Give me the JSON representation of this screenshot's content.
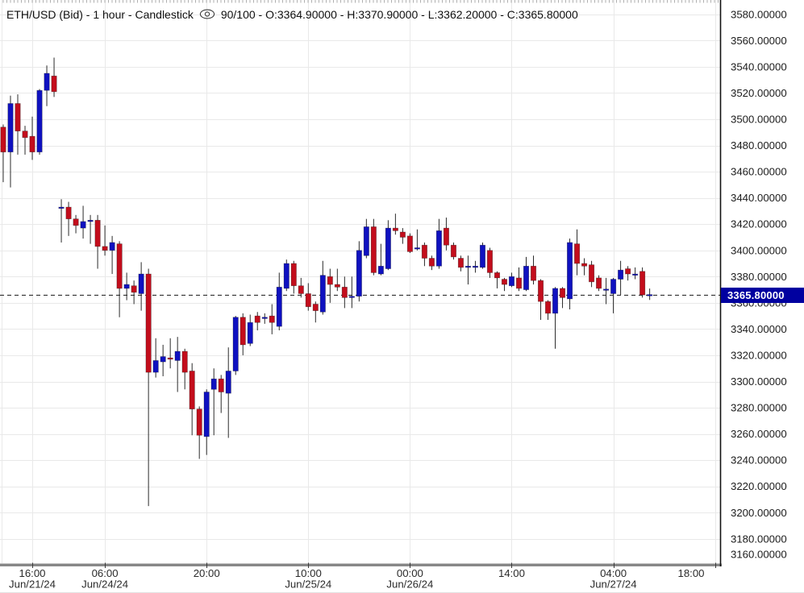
{
  "title": {
    "left": "ETH/USD (Bid) - 1 hour - Candlestick",
    "right": "90/100 - O:3364.90000 - H:3370.90000 - L:3362.20000 - C:3365.80000"
  },
  "chart_data": {
    "type": "candlestick",
    "symbol": "ETH/USD (Bid)",
    "timeframe": "1 hour",
    "bars_visible": "90/100",
    "last_bar": {
      "open": 3364.9,
      "high": 3370.9,
      "low": 3362.2,
      "close": 3365.8
    },
    "price_label": "3365.80000",
    "current_price": 3365.8,
    "y_axis": {
      "min": 3160,
      "max": 3580,
      "step": 20,
      "decimals": 5
    },
    "x_axis": [
      {
        "time": "16:00",
        "date": "Jun/21/24",
        "k": 4
      },
      {
        "time": "06:00",
        "date": "Jun/24/24",
        "k": 14
      },
      {
        "time": "20:00",
        "date": "",
        "k": 28
      },
      {
        "time": "10:00",
        "date": "Jun/25/24",
        "k": 42
      },
      {
        "time": "00:00",
        "date": "Jun/26/24",
        "k": 56
      },
      {
        "time": "14:00",
        "date": "",
        "k": 70
      },
      {
        "time": "04:00",
        "date": "Jun/27/24",
        "k": 84
      },
      {
        "time": "18:00",
        "date": "",
        "k": 98,
        "label_x": 857
      }
    ],
    "colors": {
      "up": "#0f11c0",
      "down": "#c30d1c",
      "wick": "#2b2b2b",
      "grid": "#e9e9e9",
      "axis_text": "#1c1c1c",
      "price_label_bg": "#0000a0",
      "price_line": "#151515",
      "bottom_bar": "#858585"
    },
    "candles": [
      [
        3494,
        3496,
        3452,
        3475
      ],
      [
        3475,
        3518,
        3448,
        3512
      ],
      [
        3512,
        3519,
        3473,
        3491
      ],
      [
        3491,
        3495,
        3473,
        3486
      ],
      [
        3487,
        3502,
        3469,
        3475
      ],
      [
        3475,
        3523,
        3473,
        3522
      ],
      [
        3522,
        3541,
        3510,
        3535
      ],
      [
        3533,
        3547,
        3517,
        3521
      ],
      [
        3432,
        3439,
        3406,
        3433
      ],
      [
        3433,
        3437,
        3411,
        3424
      ],
      [
        3424,
        3427,
        3413,
        3419
      ],
      [
        3417,
        3434,
        3409,
        3422
      ],
      [
        3422,
        3427,
        3405,
        3423
      ],
      [
        3423,
        3427,
        3386,
        3403
      ],
      [
        3403,
        3419,
        3396,
        3400
      ],
      [
        3400,
        3411,
        3382,
        3406
      ],
      [
        3405,
        3407,
        3349,
        3371
      ],
      [
        3371,
        3383,
        3362,
        3374
      ],
      [
        3373,
        3377,
        3359,
        3368
      ],
      [
        3367,
        3391,
        3354,
        3382
      ],
      [
        3382,
        3386,
        3205,
        3307
      ],
      [
        3307,
        3333,
        3303,
        3316
      ],
      [
        3315,
        3328,
        3304,
        3319
      ],
      [
        3318,
        3333,
        3310,
        3317
      ],
      [
        3316,
        3334,
        3292,
        3323
      ],
      [
        3323,
        3325,
        3294,
        3307
      ],
      [
        3308,
        3314,
        3259,
        3279
      ],
      [
        3279,
        3281,
        3241,
        3259
      ],
      [
        3258,
        3294,
        3244,
        3292
      ],
      [
        3294,
        3310,
        3259,
        3302
      ],
      [
        3302,
        3305,
        3276,
        3292
      ],
      [
        3291,
        3326,
        3257,
        3308
      ],
      [
        3308,
        3350,
        3305,
        3349
      ],
      [
        3349,
        3352,
        3320,
        3328
      ],
      [
        3329,
        3351,
        3327,
        3345
      ],
      [
        3350,
        3353,
        3339,
        3345
      ],
      [
        3348,
        3352,
        3344,
        3349
      ],
      [
        3350,
        3359,
        3336,
        3345
      ],
      [
        3342,
        3383,
        3339,
        3372
      ],
      [
        3371,
        3393,
        3369,
        3390
      ],
      [
        3390,
        3392,
        3367,
        3373
      ],
      [
        3373,
        3379,
        3364,
        3367
      ],
      [
        3367,
        3375,
        3354,
        3357
      ],
      [
        3359,
        3361,
        3345,
        3354
      ],
      [
        3353,
        3392,
        3351,
        3381
      ],
      [
        3380,
        3386,
        3360,
        3374
      ],
      [
        3374,
        3386,
        3369,
        3372
      ],
      [
        3372,
        3380,
        3356,
        3364
      ],
      [
        3364,
        3380,
        3356,
        3365
      ],
      [
        3365,
        3407,
        3361,
        3400
      ],
      [
        3396,
        3424,
        3394,
        3418
      ],
      [
        3418,
        3424,
        3381,
        3383
      ],
      [
        3382,
        3405,
        3381,
        3388
      ],
      [
        3386,
        3423,
        3385,
        3417
      ],
      [
        3417,
        3428,
        3412,
        3415
      ],
      [
        3414,
        3417,
        3405,
        3410
      ],
      [
        3411,
        3413,
        3398,
        3399
      ],
      [
        3401,
        3416,
        3400,
        3402
      ],
      [
        3404,
        3406,
        3388,
        3394
      ],
      [
        3394,
        3396,
        3385,
        3388
      ],
      [
        3388,
        3424,
        3386,
        3415
      ],
      [
        3417,
        3425,
        3400,
        3404
      ],
      [
        3404,
        3406,
        3393,
        3395
      ],
      [
        3394,
        3396,
        3384,
        3387
      ],
      [
        3387,
        3396,
        3374,
        3388
      ],
      [
        3387,
        3392,
        3383,
        3388
      ],
      [
        3387,
        3406,
        3386,
        3404
      ],
      [
        3400,
        3402,
        3379,
        3383
      ],
      [
        3383,
        3384,
        3371,
        3379
      ],
      [
        3378,
        3379,
        3369,
        3374
      ],
      [
        3373,
        3383,
        3372,
        3380
      ],
      [
        3379,
        3387,
        3369,
        3371
      ],
      [
        3370,
        3395,
        3369,
        3388
      ],
      [
        3388,
        3396,
        3374,
        3377
      ],
      [
        3377,
        3378,
        3347,
        3361
      ],
      [
        3361,
        3362,
        3347,
        3352
      ],
      [
        3352,
        3372,
        3325,
        3371
      ],
      [
        3371,
        3372,
        3356,
        3364
      ],
      [
        3363,
        3409,
        3355,
        3406
      ],
      [
        3405,
        3416,
        3381,
        3390
      ],
      [
        3390,
        3394,
        3381,
        3388
      ],
      [
        3389,
        3392,
        3372,
        3376
      ],
      [
        3379,
        3381,
        3369,
        3371
      ],
      [
        3369.5,
        3379,
        3359,
        3370
      ],
      [
        3367,
        3379,
        3352,
        3378
      ],
      [
        3378,
        3392,
        3366,
        3385
      ],
      [
        3386,
        3388,
        3377,
        3382
      ],
      [
        3381,
        3387,
        3378,
        3382
      ],
      [
        3384,
        3387,
        3364,
        3366
      ],
      [
        3364.9,
        3370.9,
        3362.2,
        3365.8
      ]
    ]
  }
}
